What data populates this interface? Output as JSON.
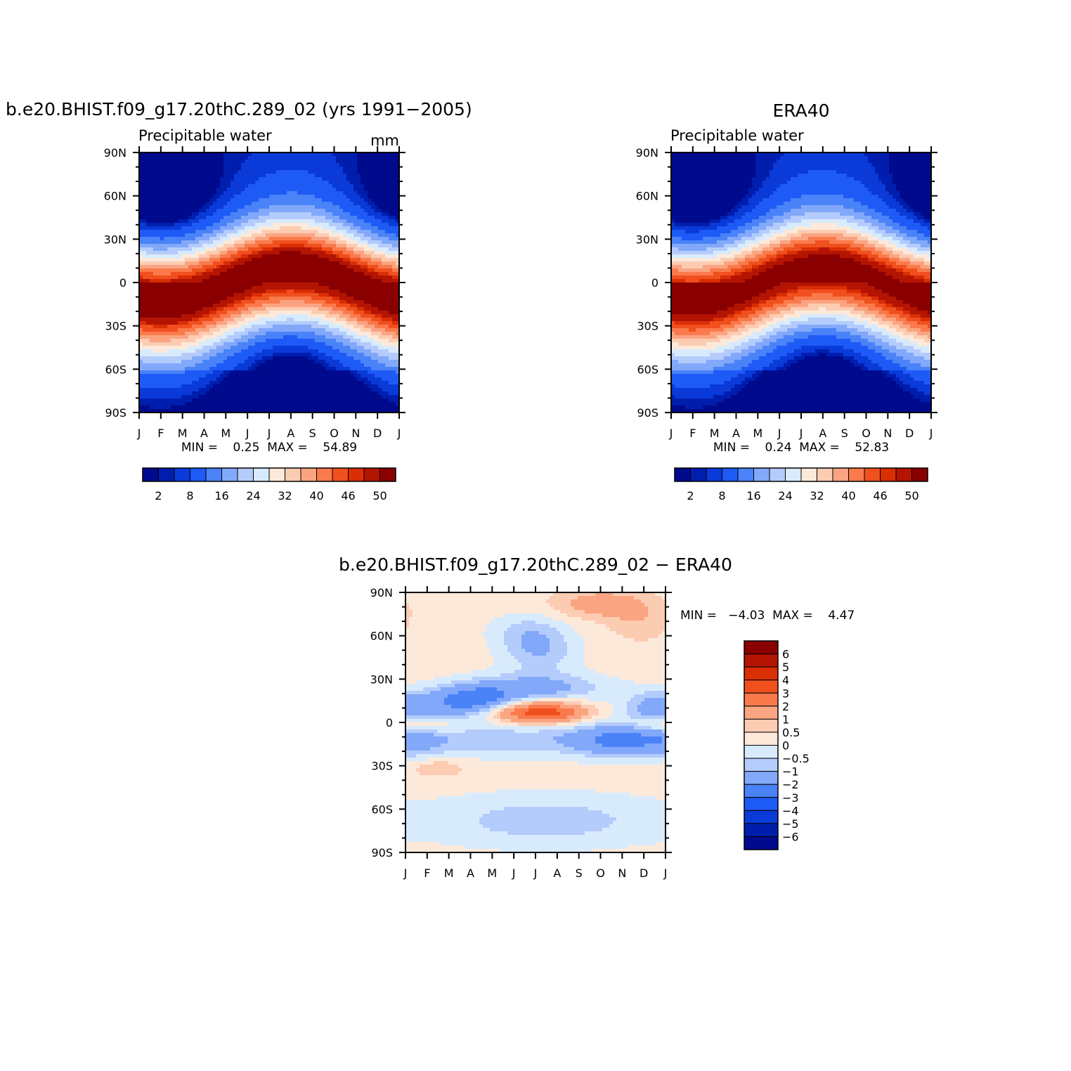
{
  "chart_data": [
    {
      "type": "heatmap",
      "title": "b.e20.BHIST.f09_g17.20thC.289_02 (yrs 1991−2005)",
      "subtitle": "Precipitable water",
      "units": "mm",
      "x_tick_labels": [
        "J",
        "F",
        "M",
        "A",
        "M",
        "J",
        "J",
        "A",
        "S",
        "O",
        "N",
        "D",
        "J"
      ],
      "y_tick_labels": [
        "90N",
        "60N",
        "30N",
        "0",
        "30S",
        "60S",
        "90S"
      ],
      "stats_text": "MIN =    0.25  MAX =    54.89",
      "min": 0.25,
      "max": 54.89,
      "colorbar_labels": [
        "2",
        "8",
        "16",
        "24",
        "32",
        "40",
        "46",
        "50"
      ],
      "colors": [
        "#000a8c",
        "#001eae",
        "#0a3ad8",
        "#1e5af5",
        "#4a82f8",
        "#82a8fa",
        "#b4ccfc",
        "#d8ebfd",
        "#fde9da",
        "#fcccb2",
        "#fba482",
        "#fa7a4c",
        "#f0501e",
        "#da2e05",
        "#b41402",
        "#8a0001"
      ]
    },
    {
      "type": "heatmap",
      "title": "ERA40",
      "subtitle": "Precipitable water",
      "x_tick_labels": [
        "J",
        "F",
        "M",
        "A",
        "M",
        "J",
        "J",
        "A",
        "S",
        "O",
        "N",
        "D",
        "J"
      ],
      "y_tick_labels": [
        "90N",
        "60N",
        "30N",
        "0",
        "30S",
        "60S",
        "90S"
      ],
      "stats_text": "MIN =    0.24  MAX =    52.83",
      "min": 0.24,
      "max": 52.83,
      "colorbar_labels": [
        "2",
        "8",
        "16",
        "24",
        "32",
        "40",
        "46",
        "50"
      ],
      "colors": [
        "#000a8c",
        "#001eae",
        "#0a3ad8",
        "#1e5af5",
        "#4a82f8",
        "#82a8fa",
        "#b4ccfc",
        "#d8ebfd",
        "#fde9da",
        "#fcccb2",
        "#fba482",
        "#fa7a4c",
        "#f0501e",
        "#da2e05",
        "#b41402",
        "#8a0001"
      ]
    },
    {
      "type": "heatmap",
      "title": "b.e20.BHIST.f09_g17.20thC.289_02 − ERA40",
      "x_tick_labels": [
        "J",
        "F",
        "M",
        "A",
        "M",
        "J",
        "J",
        "A",
        "S",
        "O",
        "N",
        "D",
        "J"
      ],
      "y_tick_labels": [
        "90N",
        "60N",
        "30N",
        "0",
        "30S",
        "60S",
        "90S"
      ],
      "stats_text": "MIN =   −4.03  MAX =    4.47",
      "min": -4.03,
      "max": 4.47,
      "colorbar_labels": [
        "6",
        "5",
        "4",
        "3",
        "2",
        "1",
        "0.5",
        "0",
        "−0.5",
        "−1",
        "−2",
        "−3",
        "−4",
        "−5",
        "−6"
      ],
      "colors": [
        "#8a0001",
        "#b41402",
        "#da2e05",
        "#f0501e",
        "#fa7a4c",
        "#fba482",
        "#fcccb2",
        "#fde9da",
        "#d8ebfd",
        "#b4ccfc",
        "#82a8fa",
        "#4a82f8",
        "#1e5af5",
        "#0a3ad8",
        "#001eae",
        "#000a8c"
      ]
    }
  ]
}
